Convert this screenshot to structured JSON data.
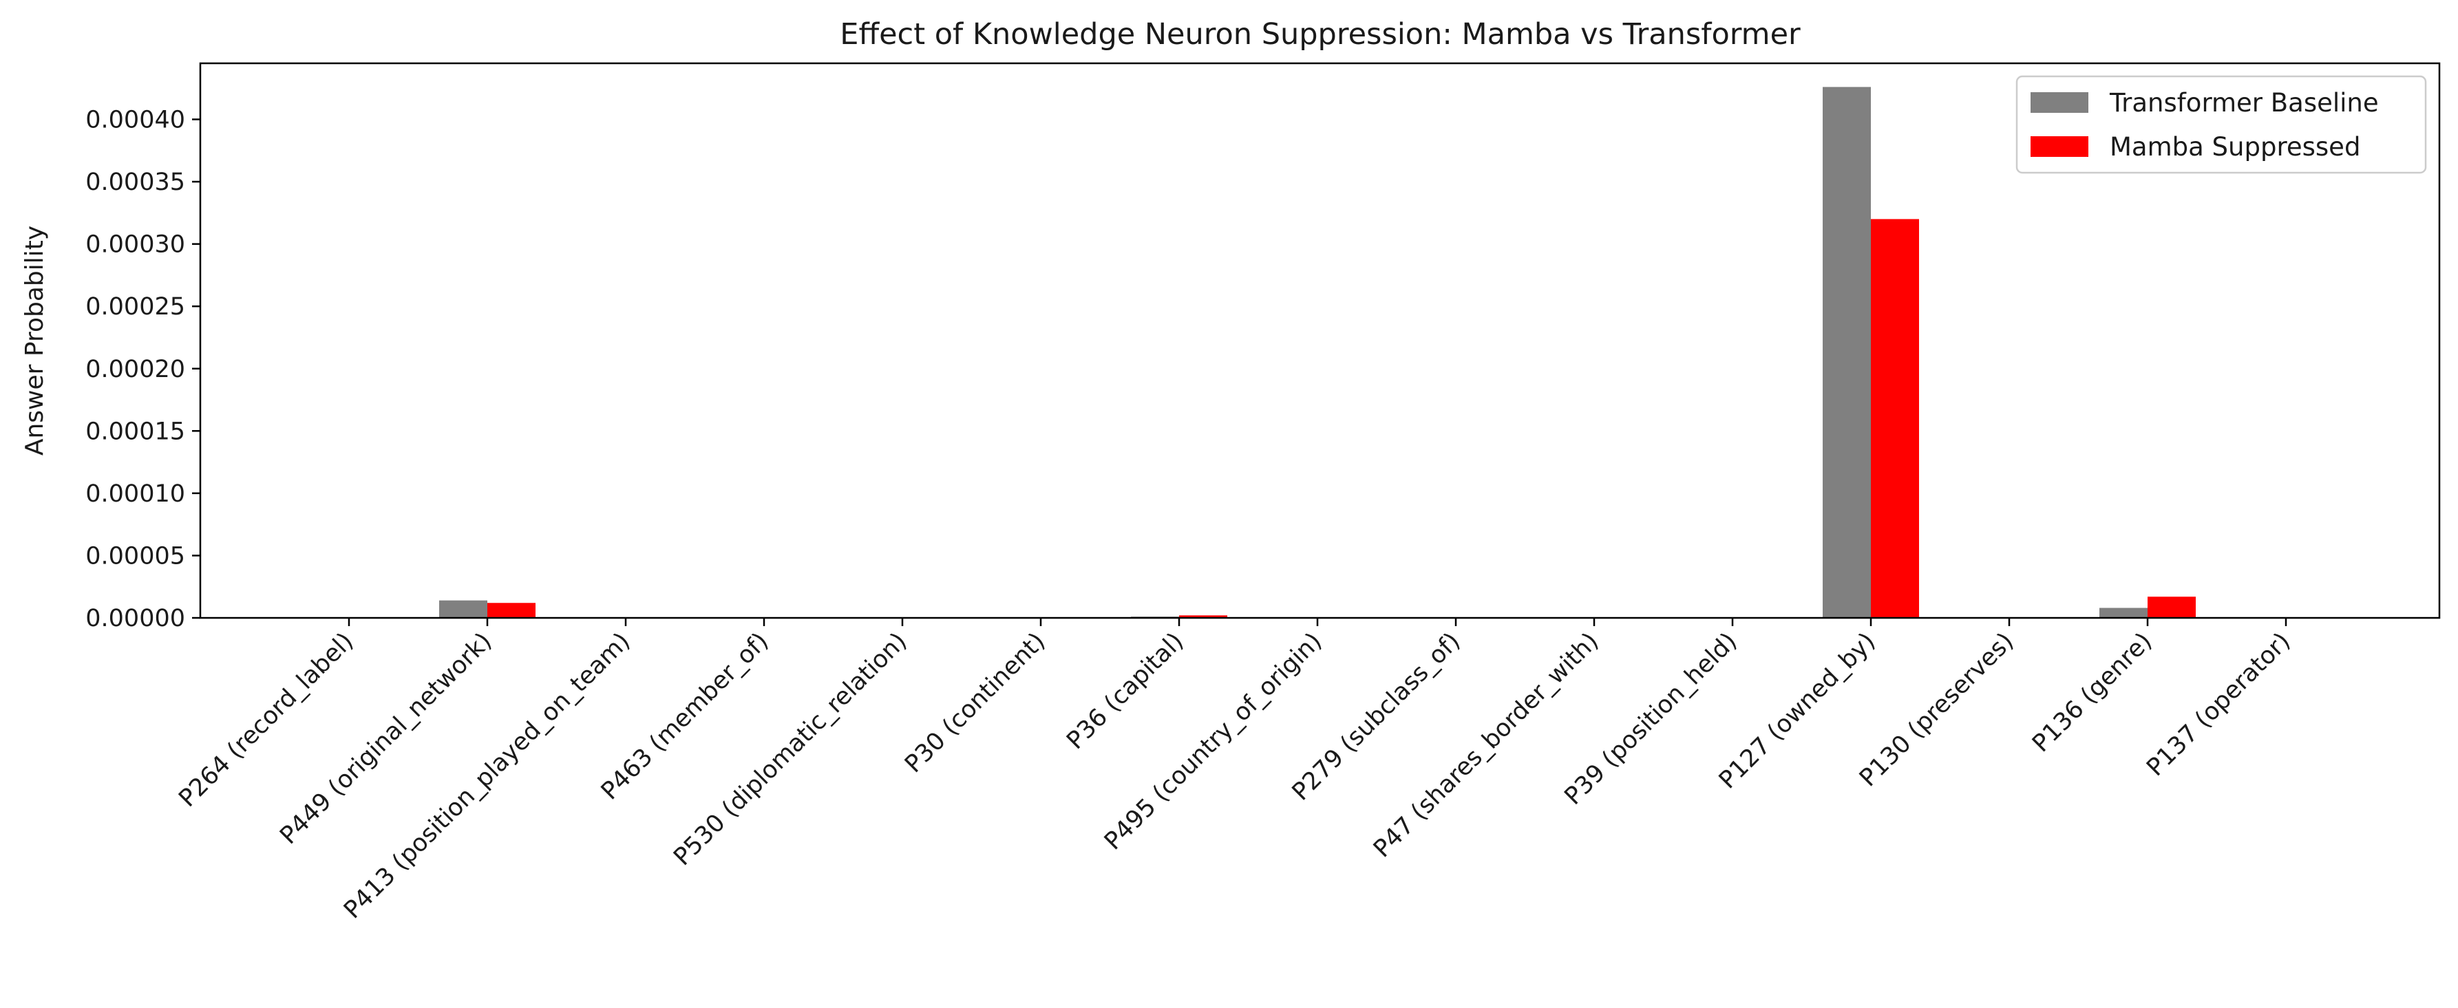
{
  "chart_data": {
    "type": "bar",
    "title": "Effect of Knowledge Neuron Suppression: Mamba vs Transformer",
    "xlabel": "",
    "ylabel": "Answer Probability",
    "ylim": [
      0,
      0.000445
    ],
    "yticks": [
      "0.00000",
      "0.00005",
      "0.00010",
      "0.00015",
      "0.00020",
      "0.00025",
      "0.00030",
      "0.00035",
      "0.00040"
    ],
    "grid": false,
    "legend_position": "top-right",
    "categories": [
      "P264 (record_label)",
      "P449 (original_network)",
      "P413 (position_played_on_team)",
      "P463 (member_of)",
      "P530 (diplomatic_relation)",
      "P30 (continent)",
      "P36 (capital)",
      "P495 (country_of_origin)",
      "P279 (subclass_of)",
      "P47 (shares_border_with)",
      "P39 (position_held)",
      "P127 (owned_by)",
      "P130 (preserves)",
      "P136 (genre)",
      "P137 (operator)"
    ],
    "series": [
      {
        "name": "Transformer Baseline",
        "color": "#808080",
        "values": [
          0,
          1.4e-05,
          0,
          0,
          0,
          0,
          1e-06,
          0,
          0,
          0,
          0,
          0.000426,
          0,
          8e-06,
          0
        ]
      },
      {
        "name": "Mamba Suppressed",
        "color": "#ff0000",
        "values": [
          0,
          1.2e-05,
          0,
          0,
          0,
          0,
          2e-06,
          0,
          0,
          0,
          0,
          0.00032,
          0,
          1.7e-05,
          0
        ]
      }
    ]
  }
}
